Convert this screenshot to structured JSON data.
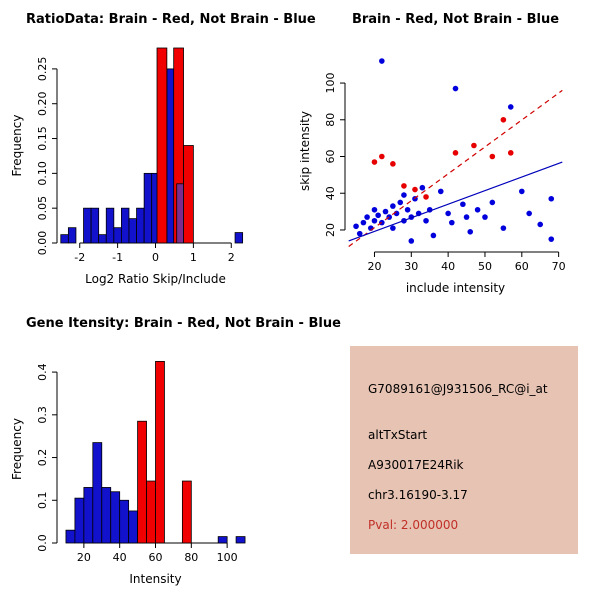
{
  "page": {
    "background": "#ffffff"
  },
  "chart_data": [
    {
      "id": "ratio_hist",
      "type": "bar",
      "title": "RatioData: Brain - Red, Not Brain - Blue",
      "xlabel": "Log2 Ratio Skip/Include",
      "ylabel": "Frequency",
      "xlim": [
        -2.6,
        2.6
      ],
      "ylim": [
        0,
        0.28
      ],
      "xticks": [
        -2,
        -1,
        0,
        1,
        2
      ],
      "yticks": [
        0,
        0.05,
        0.1,
        0.15,
        0.2,
        0.25
      ],
      "ytick_labels": [
        "0.00",
        "0.05",
        "0.10",
        "0.15",
        "0.20",
        "0.25"
      ],
      "grid": false,
      "legend": "none",
      "series": [
        {
          "name": "not_brain",
          "color": "#1212CC",
          "bars": [
            {
              "x": -2.5,
              "w": 0.2,
              "h": 0.012
            },
            {
              "x": -2.3,
              "w": 0.2,
              "h": 0.022
            },
            {
              "x": -1.9,
              "w": 0.2,
              "h": 0.05
            },
            {
              "x": -1.7,
              "w": 0.2,
              "h": 0.05
            },
            {
              "x": -1.5,
              "w": 0.2,
              "h": 0.012
            },
            {
              "x": -1.3,
              "w": 0.2,
              "h": 0.05
            },
            {
              "x": -1.1,
              "w": 0.2,
              "h": 0.022
            },
            {
              "x": -0.9,
              "w": 0.2,
              "h": 0.05
            },
            {
              "x": -0.7,
              "w": 0.2,
              "h": 0.035
            },
            {
              "x": -0.5,
              "w": 0.2,
              "h": 0.05
            },
            {
              "x": -0.3,
              "w": 0.2,
              "h": 0.1
            },
            {
              "x": -0.1,
              "w": 0.2,
              "h": 0.1
            },
            {
              "x": 0.1,
              "w": 0.2,
              "h": 0.1
            },
            {
              "x": 0.3,
              "w": 0.2,
              "h": 0.25
            },
            {
              "x": 0.52,
              "w": 0.2,
              "h": 0.085
            },
            {
              "x": 2.1,
              "w": 0.2,
              "h": 0.015
            }
          ]
        },
        {
          "name": "brain",
          "color": "#F00000",
          "bars": [
            {
              "x": 0.04,
              "w": 0.26,
              "h": 0.31
            },
            {
              "x": 0.48,
              "w": 0.26,
              "h": 0.31
            },
            {
              "x": 0.74,
              "w": 0.26,
              "h": 0.14
            }
          ]
        },
        {
          "name": "overlap",
          "color": "#7B2D8E",
          "bars": [
            {
              "x": 0.56,
              "w": 0.18,
              "h": 0.085
            }
          ]
        }
      ]
    },
    {
      "id": "scatter",
      "type": "scatter",
      "title": "Brain - Red, Not Brain - Blue",
      "xlabel": "include intensity",
      "ylabel": "skip intensity",
      "xlim": [
        12,
        72
      ],
      "ylim": [
        8,
        118
      ],
      "xticks": [
        20,
        30,
        40,
        50,
        60,
        70
      ],
      "yticks": [
        20,
        40,
        60,
        80,
        100
      ],
      "grid": false,
      "legend": "none",
      "series": [
        {
          "name": "not_brain",
          "color": "#0000DD",
          "points": [
            [
              15,
              22
            ],
            [
              16,
              18
            ],
            [
              17,
              24
            ],
            [
              18,
              27
            ],
            [
              19,
              21
            ],
            [
              20,
              25
            ],
            [
              20,
              31
            ],
            [
              21,
              28
            ],
            [
              22,
              112
            ],
            [
              22,
              24
            ],
            [
              23,
              30
            ],
            [
              24,
              27
            ],
            [
              25,
              33
            ],
            [
              25,
              21
            ],
            [
              26,
              29
            ],
            [
              27,
              35
            ],
            [
              28,
              25
            ],
            [
              28,
              39
            ],
            [
              29,
              31
            ],
            [
              30,
              27
            ],
            [
              30,
              14
            ],
            [
              31,
              37
            ],
            [
              32,
              29
            ],
            [
              33,
              43
            ],
            [
              34,
              25
            ],
            [
              35,
              31
            ],
            [
              36,
              17
            ],
            [
              38,
              41
            ],
            [
              40,
              29
            ],
            [
              41,
              24
            ],
            [
              42,
              97
            ],
            [
              44,
              34
            ],
            [
              45,
              27
            ],
            [
              46,
              19
            ],
            [
              48,
              31
            ],
            [
              50,
              27
            ],
            [
              52,
              35
            ],
            [
              55,
              21
            ],
            [
              57,
              87
            ],
            [
              60,
              41
            ],
            [
              62,
              29
            ],
            [
              65,
              23
            ],
            [
              68,
              37
            ],
            [
              68,
              15
            ]
          ]
        },
        {
          "name": "brain",
          "color": "#E60000",
          "points": [
            [
              20,
              57
            ],
            [
              22,
              60
            ],
            [
              25,
              56
            ],
            [
              28,
              44
            ],
            [
              31,
              42
            ],
            [
              34,
              38
            ],
            [
              42,
              62
            ],
            [
              47,
              66
            ],
            [
              52,
              60
            ],
            [
              55,
              80
            ],
            [
              57,
              62
            ]
          ]
        }
      ],
      "lines": [
        {
          "x1": 13,
          "y1": 11,
          "x2": 71,
          "y2": 96,
          "color": "#D00000",
          "dash": true
        },
        {
          "x1": 13,
          "y1": 14,
          "x2": 71,
          "y2": 57,
          "color": "#0000BB",
          "dash": false
        }
      ]
    },
    {
      "id": "gene_hist",
      "type": "bar",
      "title": "Gene Itensity: Brain - Red, Not Brain - Blue",
      "xlabel": "Intensity",
      "ylabel": "Frequency",
      "xlim": [
        5,
        115
      ],
      "ylim": [
        0,
        0.44
      ],
      "xticks": [
        20,
        40,
        60,
        80,
        100
      ],
      "yticks": [
        0,
        0.1,
        0.2,
        0.3,
        0.4
      ],
      "ytick_labels": [
        "0.0",
        "0.1",
        "0.2",
        "0.3",
        "0.4"
      ],
      "grid": false,
      "legend": "none",
      "series": [
        {
          "name": "not_brain",
          "color": "#1212CC",
          "bars": [
            {
              "x": 10,
              "w": 5,
              "h": 0.03
            },
            {
              "x": 15,
              "w": 5,
              "h": 0.105
            },
            {
              "x": 20,
              "w": 5,
              "h": 0.13
            },
            {
              "x": 25,
              "w": 5,
              "h": 0.235
            },
            {
              "x": 30,
              "w": 5,
              "h": 0.13
            },
            {
              "x": 35,
              "w": 5,
              "h": 0.12
            },
            {
              "x": 40,
              "w": 5,
              "h": 0.1
            },
            {
              "x": 45,
              "w": 5,
              "h": 0.075
            },
            {
              "x": 50,
              "w": 5,
              "h": 0.055
            },
            {
              "x": 55,
              "w": 5,
              "h": 0.03
            },
            {
              "x": 95,
              "w": 5,
              "h": 0.015
            },
            {
              "x": 105,
              "w": 5,
              "h": 0.015
            }
          ]
        },
        {
          "name": "brain",
          "color": "#F00000",
          "bars": [
            {
              "x": 50,
              "w": 5,
              "h": 0.285
            },
            {
              "x": 55,
              "w": 5,
              "h": 0.145
            },
            {
              "x": 60,
              "w": 5,
              "h": 0.425
            },
            {
              "x": 75,
              "w": 5,
              "h": 0.145
            }
          ]
        }
      ]
    }
  ],
  "info_box": {
    "bg_color": "#E7C3B3",
    "text_color": "#000000",
    "pval_color": "#C03028",
    "lines": [
      "G7089161@J931506_RC@i_at",
      "altTxStart",
      "A930017E24Rik",
      "chr3.16190-3.17",
      "Pval: 2.000000"
    ]
  }
}
